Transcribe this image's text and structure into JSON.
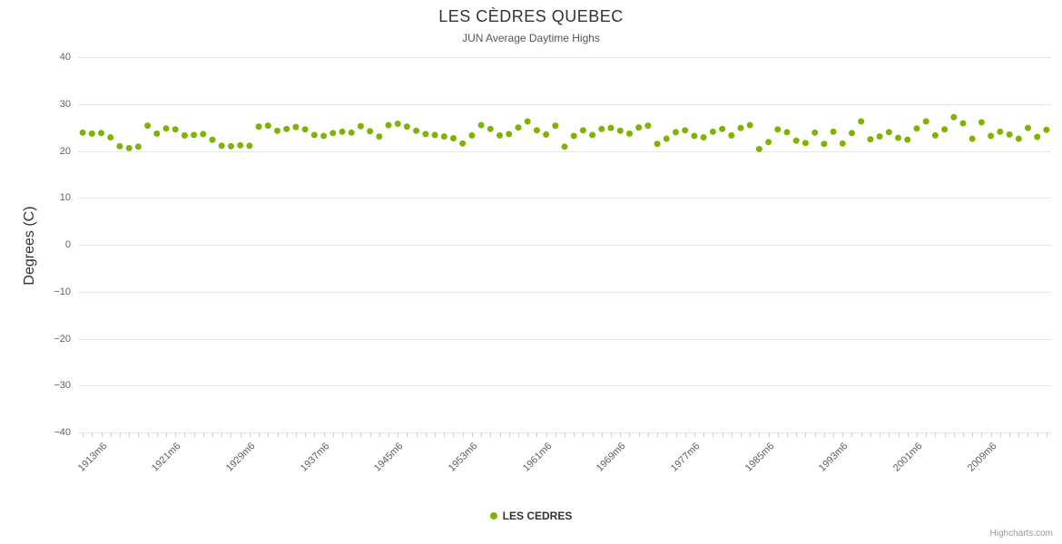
{
  "header": {
    "title": "LES CÈDRES QUEBEC",
    "subtitle": "JUN Average Daytime Highs"
  },
  "legend": {
    "label": "LES CEDRES"
  },
  "credits": {
    "label": "Highcharts.com"
  },
  "colors": {
    "point": "#7cb400",
    "grid": "#e6e6e6",
    "tick": "#c0d0e0",
    "axis_label": "#606060",
    "text": "#333333"
  },
  "chart_data": {
    "type": "scatter",
    "title": "LES CÈDRES QUEBEC",
    "subtitle": "JUN Average Daytime Highs",
    "ylabel": "Degrees (C)",
    "xlabel": "",
    "ylim": [
      -40,
      40
    ],
    "y_ticks": [
      40,
      30,
      20,
      10,
      0,
      -10,
      -20,
      -30,
      -40
    ],
    "grid": true,
    "legend_position": "bottom-center",
    "series_name": "LES CEDRES",
    "x_start_year": 1911,
    "x_step_years": 1,
    "x_suffix": "m6",
    "x_tick_years": [
      1913,
      1921,
      1929,
      1937,
      1945,
      1953,
      1961,
      1969,
      1977,
      1985,
      1993,
      2001,
      2009
    ],
    "x_tick_labels": [
      "1913m6",
      "1921m6",
      "1929m6",
      "1937m6",
      "1945m6",
      "1953m6",
      "1961m6",
      "1969m6",
      "1977m6",
      "1985m6",
      "1993m6",
      "2001m6",
      "2009m6"
    ],
    "values": [
      23.9,
      23.7,
      23.8,
      22.9,
      21.0,
      20.6,
      20.9,
      25.4,
      23.7,
      24.8,
      24.6,
      23.3,
      23.4,
      23.6,
      22.4,
      21.1,
      21.0,
      21.2,
      21.1,
      25.2,
      25.4,
      24.3,
      24.7,
      25.1,
      24.6,
      23.4,
      23.2,
      23.8,
      24.1,
      23.9,
      25.3,
      24.2,
      23.1,
      25.5,
      25.8,
      25.2,
      24.3,
      23.6,
      23.4,
      23.1,
      22.7,
      21.6,
      23.3,
      25.5,
      24.7,
      23.3,
      23.6,
      25.0,
      26.3,
      24.4,
      23.5,
      25.4,
      20.9,
      23.2,
      24.4,
      23.4,
      24.7,
      24.9,
      24.3,
      23.7,
      25.0,
      25.4,
      21.5,
      22.6,
      24.0,
      24.4,
      23.2,
      22.9,
      24.1,
      24.7,
      23.3,
      24.9,
      25.5,
      20.4,
      21.9,
      24.6,
      24.0,
      22.2,
      21.7,
      23.9,
      21.5,
      24.1,
      21.6,
      23.8,
      26.3,
      22.5,
      23.1,
      24.0,
      22.8,
      22.4,
      24.8,
      26.3,
      23.3,
      24.6,
      27.2,
      25.9,
      22.6,
      26.1,
      23.2,
      24.1,
      23.5,
      22.6,
      24.9,
      23.0,
      24.5
    ]
  }
}
